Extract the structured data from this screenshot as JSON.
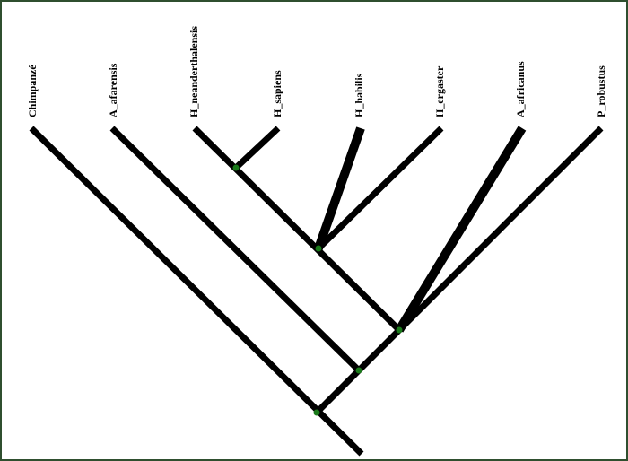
{
  "taxa": [
    "Chimpanzé",
    "A_afarensis",
    "H_neanderthalensis",
    "H_sapiens",
    "H_habilis",
    "H_ergaster",
    "A_africanus",
    "P_robustus"
  ]
}
